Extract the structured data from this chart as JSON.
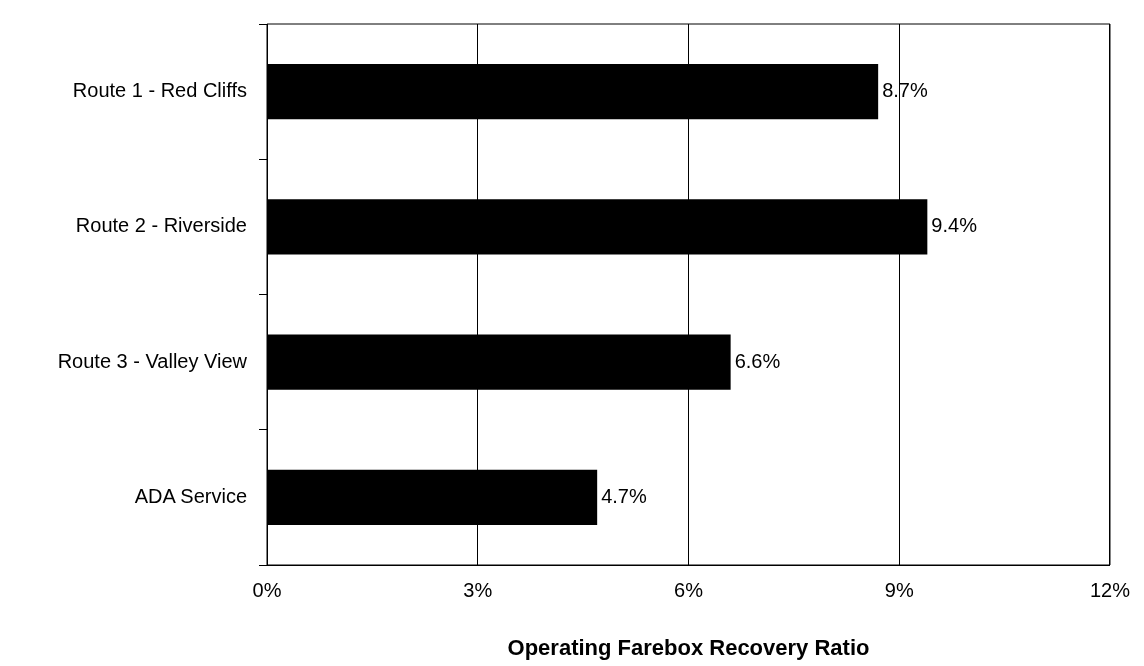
{
  "chart_data": {
    "type": "bar",
    "orientation": "horizontal",
    "xlabel": "Operating Farebox Recovery Ratio",
    "categories": [
      "Route 1 - Red Cliffs",
      "Route 2 - Riverside",
      "Route 3 - Valley View",
      "ADA Service"
    ],
    "values": [
      8.7,
      9.4,
      6.6,
      4.7
    ],
    "color": "#000000",
    "value_labels": [
      "8.7%",
      "9.4%",
      "6.6%",
      "4.7%"
    ],
    "xlim": [
      0,
      12
    ],
    "xticks": [
      {
        "value": 0,
        "label": "0%"
      },
      {
        "value": 3,
        "label": "3%"
      },
      {
        "value": 6,
        "label": "6%"
      },
      {
        "value": 9,
        "label": "9%"
      },
      {
        "value": 12,
        "label": "12%"
      }
    ],
    "grid": "x",
    "legend": false
  }
}
